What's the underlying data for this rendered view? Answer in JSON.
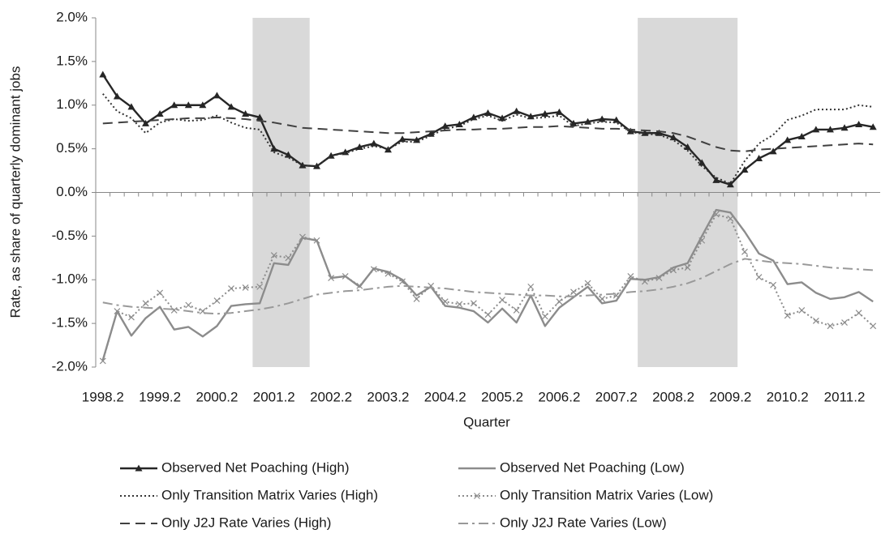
{
  "chart_data": {
    "type": "line",
    "y_label": "Rate, as share of quarterly dominant jobs",
    "x_label": "Quarter",
    "categories": [
      "1998.2",
      null,
      null,
      null,
      "1999.2",
      null,
      null,
      null,
      "2000.2",
      null,
      null,
      null,
      "2001.2",
      null,
      null,
      null,
      "2002.2",
      null,
      null,
      null,
      "2003.2",
      null,
      null,
      null,
      "2004.2",
      null,
      null,
      null,
      "2005.2",
      null,
      null,
      null,
      "2006.2",
      null,
      null,
      null,
      "2007.2",
      null,
      null,
      null,
      "2008.2",
      null,
      null,
      null,
      "2009.2",
      null,
      null,
      null,
      "2010.2",
      null,
      null,
      null,
      "2011.2",
      null,
      null
    ],
    "ylim": [
      -2,
      2
    ],
    "yticks": [
      {
        "value": -2,
        "label": "-2.0%"
      },
      {
        "value": -1.5,
        "label": "-1.5%"
      },
      {
        "value": -1,
        "label": "-1.0%"
      },
      {
        "value": -0.5,
        "label": "-0.5%"
      },
      {
        "value": 0,
        "label": "0.0%"
      },
      {
        "value": 0.5,
        "label": "0.5%"
      },
      {
        "value": 1,
        "label": "1.0%"
      },
      {
        "value": 1.5,
        "label": "1.5%"
      },
      {
        "value": 2,
        "label": "2.0%"
      }
    ],
    "shaded_periods": [
      {
        "from": 11,
        "to": 14
      },
      {
        "from": 38,
        "to": 44
      }
    ],
    "shade_color": "#d9d9d9",
    "grid": false,
    "legend_position": "bottom",
    "series": [
      {
        "name": "Observed Net Poaching (High)",
        "color": "#262626",
        "style": "solid",
        "marker": "triangle",
        "values": [
          1.35,
          1.1,
          0.98,
          0.79,
          0.9,
          1.0,
          1.0,
          1.0,
          1.11,
          0.98,
          0.9,
          0.86,
          0.5,
          0.43,
          0.31,
          0.3,
          0.42,
          0.46,
          0.52,
          0.56,
          0.49,
          0.61,
          0.6,
          0.67,
          0.76,
          0.78,
          0.86,
          0.91,
          0.85,
          0.93,
          0.87,
          0.9,
          0.92,
          0.79,
          0.81,
          0.84,
          0.83,
          0.7,
          0.68,
          0.68,
          0.63,
          0.52,
          0.34,
          0.14,
          0.09,
          0.26,
          0.39,
          0.47,
          0.6,
          0.64,
          0.72,
          0.72,
          0.74,
          0.78,
          0.75
        ]
      },
      {
        "name": "Observed Net Poaching (Low)",
        "color": "#8c8c8c",
        "style": "solid",
        "marker": null,
        "values": [
          -1.92,
          -1.36,
          -1.64,
          -1.44,
          -1.31,
          -1.57,
          -1.54,
          -1.65,
          -1.53,
          -1.3,
          -1.28,
          -1.27,
          -0.81,
          -0.83,
          -0.52,
          -0.55,
          -0.98,
          -0.96,
          -1.08,
          -0.87,
          -0.91,
          -1.0,
          -1.18,
          -1.08,
          -1.3,
          -1.32,
          -1.36,
          -1.49,
          -1.33,
          -1.49,
          -1.18,
          -1.53,
          -1.32,
          -1.2,
          -1.08,
          -1.27,
          -1.24,
          -0.99,
          -1.0,
          -0.97,
          -0.86,
          -0.81,
          -0.5,
          -0.2,
          -0.23,
          -0.45,
          -0.7,
          -0.78,
          -1.05,
          -1.03,
          -1.15,
          -1.22,
          -1.2,
          -1.14,
          -1.25
        ]
      },
      {
        "name": "Only Transition Matrix Varies (High)",
        "color": "#333333",
        "style": "dotted",
        "marker": null,
        "values": [
          1.13,
          0.93,
          0.85,
          0.68,
          0.8,
          0.84,
          0.82,
          0.83,
          0.88,
          0.8,
          0.74,
          0.72,
          0.46,
          0.4,
          0.31,
          0.3,
          0.42,
          0.45,
          0.5,
          0.53,
          0.5,
          0.58,
          0.58,
          0.65,
          0.73,
          0.76,
          0.84,
          0.88,
          0.82,
          0.89,
          0.85,
          0.86,
          0.88,
          0.76,
          0.79,
          0.81,
          0.8,
          0.69,
          0.67,
          0.66,
          0.6,
          0.48,
          0.3,
          0.17,
          0.1,
          0.36,
          0.56,
          0.66,
          0.83,
          0.88,
          0.95,
          0.95,
          0.95,
          1.0,
          0.98
        ]
      },
      {
        "name": "Only Transition Matrix Varies (Low)",
        "color": "#8c8c8c",
        "style": "dotted",
        "marker": "x",
        "values": [
          -1.93,
          -1.36,
          -1.43,
          -1.27,
          -1.15,
          -1.35,
          -1.29,
          -1.36,
          -1.24,
          -1.1,
          -1.09,
          -1.08,
          -0.72,
          -0.75,
          -0.51,
          -0.55,
          -0.98,
          -0.96,
          -1.07,
          -0.88,
          -0.93,
          -1.02,
          -1.22,
          -1.07,
          -1.25,
          -1.28,
          -1.27,
          -1.4,
          -1.23,
          -1.35,
          -1.08,
          -1.42,
          -1.25,
          -1.14,
          -1.04,
          -1.22,
          -1.18,
          -0.96,
          -1.02,
          -0.98,
          -0.89,
          -0.86,
          -0.55,
          -0.25,
          -0.3,
          -0.68,
          -0.97,
          -1.06,
          -1.41,
          -1.35,
          -1.47,
          -1.53,
          -1.49,
          -1.38,
          -1.53
        ]
      },
      {
        "name": "Only J2J Rate Varies (High)",
        "color": "#404040",
        "style": "dashed",
        "marker": null,
        "values": [
          0.79,
          0.8,
          0.81,
          0.82,
          0.83,
          0.84,
          0.85,
          0.85,
          0.86,
          0.85,
          0.84,
          0.82,
          0.8,
          0.77,
          0.74,
          0.73,
          0.72,
          0.71,
          0.7,
          0.69,
          0.68,
          0.68,
          0.69,
          0.7,
          0.71,
          0.72,
          0.72,
          0.73,
          0.73,
          0.74,
          0.75,
          0.75,
          0.76,
          0.75,
          0.74,
          0.73,
          0.73,
          0.72,
          0.71,
          0.7,
          0.68,
          0.64,
          0.58,
          0.52,
          0.48,
          0.47,
          0.49,
          0.5,
          0.51,
          0.52,
          0.53,
          0.54,
          0.55,
          0.56,
          0.55
        ]
      },
      {
        "name": "Only J2J Rate Varies (Low)",
        "color": "#999999",
        "style": "dashdot",
        "marker": null,
        "values": [
          -1.26,
          -1.29,
          -1.31,
          -1.32,
          -1.33,
          -1.34,
          -1.36,
          -1.38,
          -1.39,
          -1.38,
          -1.36,
          -1.34,
          -1.31,
          -1.27,
          -1.22,
          -1.17,
          -1.15,
          -1.13,
          -1.12,
          -1.1,
          -1.08,
          -1.07,
          -1.08,
          -1.09,
          -1.1,
          -1.12,
          -1.14,
          -1.15,
          -1.16,
          -1.17,
          -1.18,
          -1.18,
          -1.19,
          -1.19,
          -1.18,
          -1.17,
          -1.16,
          -1.14,
          -1.13,
          -1.11,
          -1.08,
          -1.04,
          -0.98,
          -0.9,
          -0.82,
          -0.76,
          -0.78,
          -0.8,
          -0.81,
          -0.82,
          -0.84,
          -0.86,
          -0.87,
          -0.88,
          -0.89
        ]
      }
    ]
  }
}
